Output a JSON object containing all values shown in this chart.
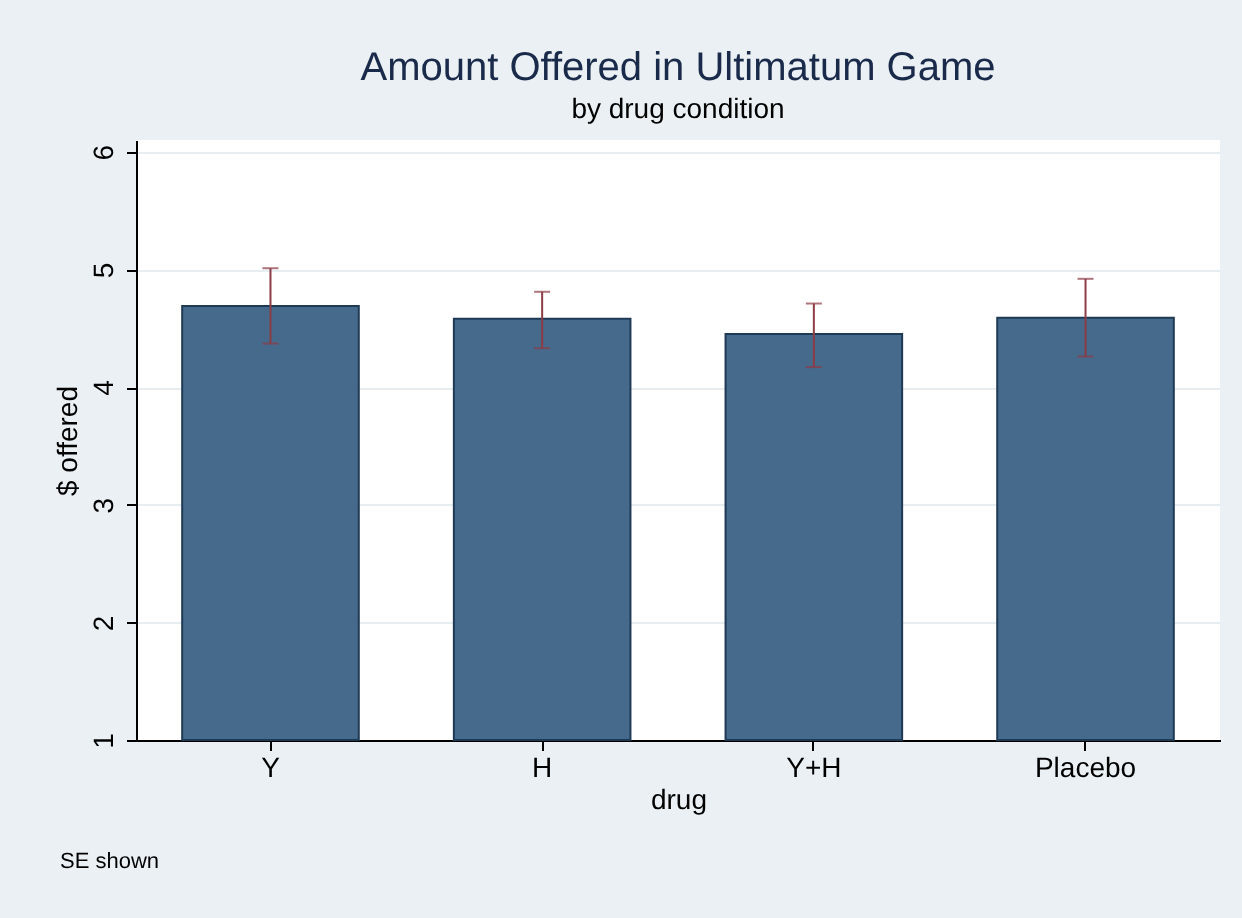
{
  "chart_data": {
    "type": "bar",
    "title": "Amount Offered in Ultimatum Game",
    "subtitle": "by drug condition",
    "xlabel": "drug",
    "ylabel": "$ offered",
    "categories": [
      "Y",
      "H",
      "Y+H",
      "Placebo"
    ],
    "values": [
      4.69,
      4.58,
      4.45,
      4.59
    ],
    "errors": [
      [
        4.37,
        5.01
      ],
      [
        4.33,
        4.81
      ],
      [
        4.17,
        4.71
      ],
      [
        4.26,
        4.92
      ]
    ],
    "color": "#466a8c",
    "ylim": [
      1,
      6.1
    ],
    "yticks": [
      1,
      2,
      3,
      4,
      5,
      6
    ],
    "grid": "y",
    "annotations": [
      "SE shown"
    ]
  }
}
